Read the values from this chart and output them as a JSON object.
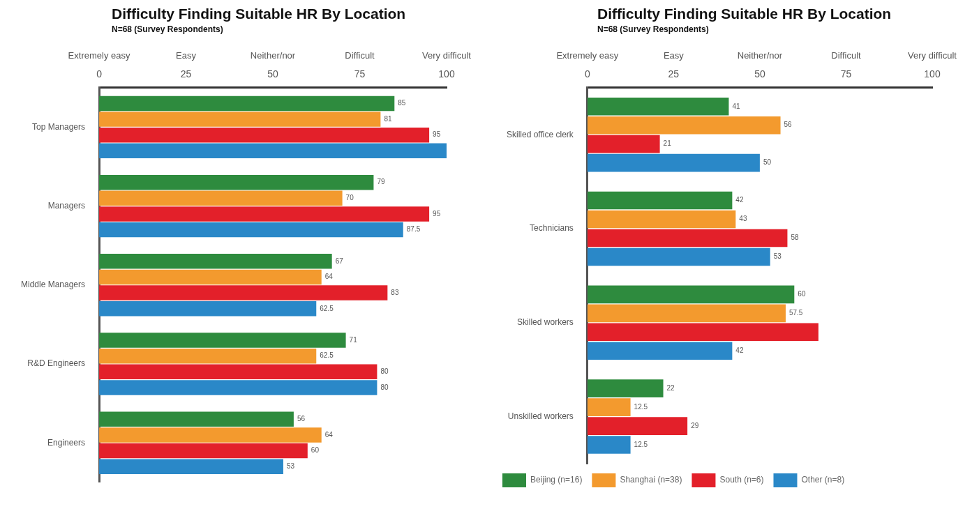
{
  "chart_data": [
    {
      "type": "bar",
      "orientation": "horizontal",
      "title": "Difficulty Finding Suitable HR By Location",
      "subtitle": "N=68 (Survey Respondents)",
      "categories": [
        "Top Managers",
        "Managers",
        "Middle Managers",
        "R&D Engineers",
        "Engineers"
      ],
      "series": [
        {
          "color": "#2e8b3e",
          "values": [
            85,
            79,
            67,
            71,
            56
          ],
          "value_labels": [
            "85",
            "79",
            "67",
            "71",
            "56"
          ]
        },
        {
          "color": "#f39a2e",
          "values": [
            81,
            70,
            64,
            62.5,
            64
          ],
          "value_labels": [
            "81",
            "70",
            "64",
            "62.5",
            "64"
          ]
        },
        {
          "color": "#e3202a",
          "values": [
            95,
            95,
            83,
            80,
            60
          ],
          "value_labels": [
            "95",
            "95",
            "83",
            "80",
            "60"
          ]
        },
        {
          "color": "#2a88c8",
          "values": [
            100,
            87.5,
            62.5,
            80,
            53
          ],
          "value_labels": [
            null,
            "87.5",
            "62.5",
            "80",
            "53"
          ]
        }
      ],
      "xlim": [
        0,
        100
      ],
      "xticks": [
        0,
        25,
        50,
        75,
        100
      ],
      "annotations": [
        "Extremely easy",
        "Easy",
        "Neither/nor",
        "Difficult",
        "Very difficult"
      ],
      "grid": false
    },
    {
      "type": "bar",
      "orientation": "horizontal",
      "title": "Difficulty Finding Suitable HR By Location",
      "subtitle": "N=68 (Survey Respondents)",
      "categories": [
        "Skilled office clerk",
        "Technicians",
        "Skilled workers",
        "Unskilled workers"
      ],
      "series": [
        {
          "name": "Beijing (n=16)",
          "color": "#2e8b3e",
          "values": [
            41,
            42,
            60,
            22
          ],
          "value_labels": [
            "41",
            "42",
            "60",
            "22"
          ]
        },
        {
          "name": "Shanghai (n=38)",
          "color": "#f39a2e",
          "values": [
            56,
            43,
            57.5,
            12.5
          ],
          "value_labels": [
            "56",
            "43",
            "57.5",
            "12.5"
          ]
        },
        {
          "name": "South (n=6)",
          "color": "#e3202a",
          "values": [
            21,
            58,
            67,
            29
          ],
          "value_labels": [
            "21",
            "58",
            null,
            "29"
          ]
        },
        {
          "name": "Other (n=8)",
          "color": "#2a88c8",
          "values": [
            50,
            53,
            42,
            12.5
          ],
          "value_labels": [
            "50",
            "53",
            "42",
            "12.5"
          ]
        }
      ],
      "xlim": [
        0,
        100
      ],
      "xticks": [
        0,
        25,
        50,
        75,
        100
      ],
      "annotations": [
        "Extremely easy",
        "Easy",
        "Neither/nor",
        "Difficult",
        "Very difficult"
      ],
      "grid": false,
      "legend": "bottom left"
    }
  ]
}
